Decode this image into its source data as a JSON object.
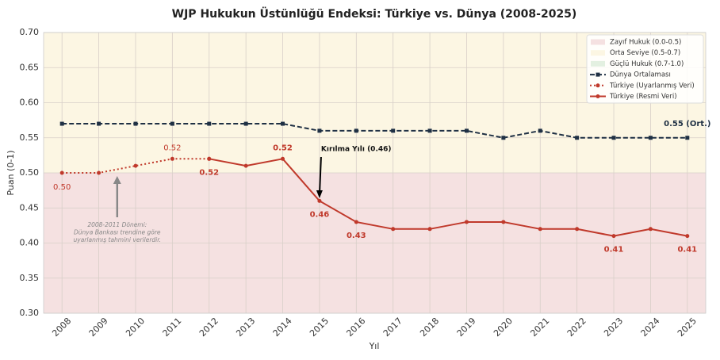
{
  "chart_data": {
    "type": "line",
    "title": "WJP Hukukun Üstünlüğü Endeksi: Türkiye vs. Dünya (2008-2025)",
    "x_label": "Yıl",
    "y_label": "Puan (0-1)",
    "x": [
      2008,
      2009,
      2010,
      2011,
      2012,
      2013,
      2014,
      2015,
      2016,
      2017,
      2018,
      2019,
      2020,
      2021,
      2022,
      2023,
      2024,
      2025
    ],
    "xlim": [
      2007.5,
      2025.5
    ],
    "xticks": [
      2008,
      2009,
      2010,
      2011,
      2012,
      2013,
      2014,
      2015,
      2016,
      2017,
      2018,
      2019,
      2020,
      2021,
      2022,
      2023,
      2024,
      2025
    ],
    "ylim": [
      0.3,
      0.7
    ],
    "yticks": [
      {
        "value": 0.3,
        "label": "0.30"
      },
      {
        "value": 0.35,
        "label": "0.35"
      },
      {
        "value": 0.4,
        "label": "0.40"
      },
      {
        "value": 0.45,
        "label": "0.45"
      },
      {
        "value": 0.5,
        "label": "0.50"
      },
      {
        "value": 0.55,
        "label": "0.55"
      },
      {
        "value": 0.6,
        "label": "0.60"
      },
      {
        "value": 0.65,
        "label": "0.65"
      },
      {
        "value": 0.7,
        "label": "0.70"
      }
    ],
    "grid": true,
    "legend": "upper right",
    "bands": [
      {
        "name": "Zayıf Hukuk (0.0-0.5)",
        "color": "#f5e1e1",
        "from": 0.0,
        "to": 0.5
      },
      {
        "name": "Orta Seviye (0.5-0.7)",
        "color": "#fcf6e3",
        "from": 0.5,
        "to": 0.7
      },
      {
        "name": "Güçlü Hukuk (0.7-1.0)",
        "color": "#e3f0e1",
        "from": 0.7,
        "to": 1.0
      }
    ],
    "series": [
      {
        "name": "Dünya Ortalaması",
        "color": "#1f3044",
        "style": "dashed",
        "marker": "square",
        "values": [
          0.57,
          0.57,
          0.57,
          0.57,
          0.57,
          0.57,
          0.57,
          0.56,
          0.56,
          0.56,
          0.56,
          0.56,
          0.55,
          0.56,
          0.55,
          0.55,
          0.55,
          0.55
        ],
        "value_labels": [
          null,
          null,
          null,
          null,
          null,
          null,
          null,
          null,
          null,
          null,
          null,
          null,
          null,
          null,
          null,
          null,
          null,
          "0.55 (Ort.)"
        ]
      },
      {
        "name": "Türkiye (Uyarlanmış Veri)",
        "color": "#c0392b",
        "style": "dotted",
        "marker": "circle",
        "values": [
          0.5,
          0.5,
          0.51,
          0.52,
          0.52,
          null,
          null,
          null,
          null,
          null,
          null,
          null,
          null,
          null,
          null,
          null,
          null,
          null
        ],
        "value_labels": [
          "0.50",
          null,
          null,
          "0.52",
          null,
          null,
          null,
          null,
          null,
          null,
          null,
          null,
          null,
          null,
          null,
          null,
          null,
          null
        ]
      },
      {
        "name": "Türkiye (Resmi Veri)",
        "color": "#c0392b",
        "style": "solid",
        "marker": "circle",
        "values": [
          null,
          null,
          null,
          null,
          0.52,
          0.51,
          0.52,
          0.46,
          0.43,
          0.42,
          0.42,
          0.43,
          0.43,
          0.42,
          0.42,
          0.41,
          0.42,
          0.41
        ],
        "value_labels": [
          null,
          null,
          null,
          null,
          "0.52",
          null,
          "0.52",
          "0.46",
          "0.43",
          null,
          null,
          null,
          null,
          null,
          null,
          "0.41",
          null,
          "0.41"
        ]
      }
    ],
    "annotations": [
      {
        "text": [
          "Kırılma Yılı (0.46)"
        ]
      },
      {
        "text": [
          "2008-2011 Dönemi:",
          "Dünya Bankası trendine göre",
          "uyarlanmış tahmini verilerdir."
        ]
      }
    ]
  }
}
